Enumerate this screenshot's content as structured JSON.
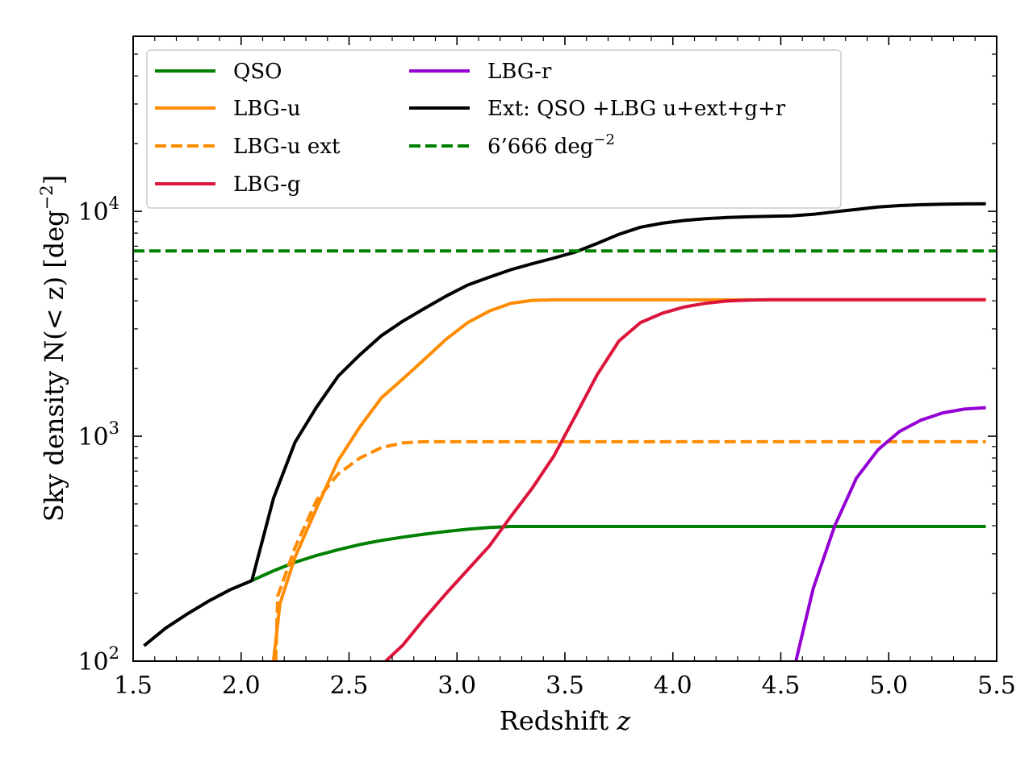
{
  "chart_data": {
    "type": "line",
    "title": "",
    "xlabel": "Redshift z",
    "ylabel": "Sky density N(< z) [deg",
    "ylabel_sup": "−2",
    "ylabel_close": "]",
    "xlim": [
      1.5,
      5.5
    ],
    "ylim": [
      100,
      60000
    ],
    "yscale": "log",
    "grid": false,
    "legend_position": "top-left",
    "x_ticks": [
      1.5,
      2.0,
      2.5,
      3.0,
      3.5,
      4.0,
      4.5,
      5.0,
      5.5
    ],
    "x_tick_labels": [
      "1.5",
      "2.0",
      "2.5",
      "3.0",
      "3.5",
      "4.0",
      "4.5",
      "5.0",
      "5.5"
    ],
    "y_ticks": [
      {
        "value": 100,
        "base": "10",
        "exp": "2"
      },
      {
        "value": 1000,
        "base": "10",
        "exp": "3"
      },
      {
        "value": 10000,
        "base": "10",
        "exp": "4"
      }
    ],
    "series": [
      {
        "name": "QSO",
        "color": "#008000",
        "dash": "solid",
        "x": [
          2.05,
          2.15,
          2.25,
          2.35,
          2.45,
          2.55,
          2.65,
          2.75,
          2.85,
          2.95,
          3.05,
          3.15,
          3.25,
          5.45
        ],
        "y": [
          228,
          252,
          275,
          295,
          313,
          330,
          344,
          356,
          367,
          377,
          386,
          393,
          397,
          397
        ]
      },
      {
        "name": "LBG-u",
        "color": "#ff8c00",
        "dash": "solid",
        "x": [
          2.15,
          2.18,
          2.25,
          2.35,
          2.45,
          2.55,
          2.65,
          2.75,
          2.85,
          2.95,
          3.05,
          3.15,
          3.25,
          3.35,
          3.45,
          5.45
        ],
        "y": [
          100,
          180,
          290,
          480,
          780,
          1100,
          1480,
          1800,
          2200,
          2700,
          3200,
          3600,
          3900,
          4020,
          4040,
          4040
        ]
      },
      {
        "name": "LBG-u ext",
        "color": "#ff8c00",
        "dash": "dashed",
        "x": [
          2.16,
          2.17,
          2.25,
          2.35,
          2.45,
          2.55,
          2.65,
          2.75,
          2.85,
          5.45
        ],
        "y": [
          100,
          195,
          320,
          520,
          680,
          800,
          890,
          935,
          945,
          945
        ]
      },
      {
        "name": "LBG-g",
        "color": "#dc143c",
        "dash": "solid",
        "x": [
          2.67,
          2.75,
          2.85,
          2.95,
          3.05,
          3.15,
          3.25,
          3.35,
          3.45,
          3.55,
          3.65,
          3.75,
          3.85,
          3.95,
          4.05,
          4.15,
          4.25,
          4.35,
          4.45,
          5.45
        ],
        "y": [
          100,
          118,
          155,
          200,
          255,
          325,
          440,
          590,
          820,
          1240,
          1880,
          2650,
          3200,
          3520,
          3750,
          3900,
          3990,
          4030,
          4045,
          4045
        ]
      },
      {
        "name": "LBG-r",
        "color": "#9400d3",
        "dash": "solid",
        "x": [
          4.57,
          4.65,
          4.75,
          4.85,
          4.95,
          5.05,
          5.15,
          5.25,
          5.35,
          5.45
        ],
        "y": [
          100,
          210,
          400,
          650,
          870,
          1050,
          1180,
          1270,
          1320,
          1340
        ]
      },
      {
        "name": "Ext: QSO +LBG u+ext+g+r",
        "color": "#000000",
        "dash": "solid",
        "x": [
          1.55,
          1.65,
          1.75,
          1.85,
          1.95,
          2.05,
          2.15,
          2.25,
          2.35,
          2.45,
          2.55,
          2.65,
          2.75,
          2.85,
          2.95,
          3.05,
          3.15,
          3.25,
          3.35,
          3.45,
          3.55,
          3.65,
          3.75,
          3.85,
          3.95,
          4.05,
          4.15,
          4.25,
          4.35,
          4.45,
          4.55,
          4.65,
          4.75,
          4.85,
          4.95,
          5.05,
          5.15,
          5.25,
          5.35,
          5.45
        ],
        "y": [
          117,
          140,
          162,
          185,
          208,
          228,
          530,
          940,
          1350,
          1850,
          2300,
          2800,
          3250,
          3700,
          4200,
          4700,
          5100,
          5500,
          5850,
          6200,
          6600,
          7200,
          7900,
          8500,
          8850,
          9100,
          9270,
          9380,
          9450,
          9500,
          9550,
          9700,
          9950,
          10200,
          10450,
          10600,
          10700,
          10760,
          10790,
          10800
        ]
      },
      {
        "name": "6’666 deg",
        "name_sup": "−2",
        "color": "#008000",
        "dash": "dashed",
        "x": [
          1.5,
          5.5
        ],
        "y": [
          6666,
          6666
        ]
      }
    ]
  }
}
